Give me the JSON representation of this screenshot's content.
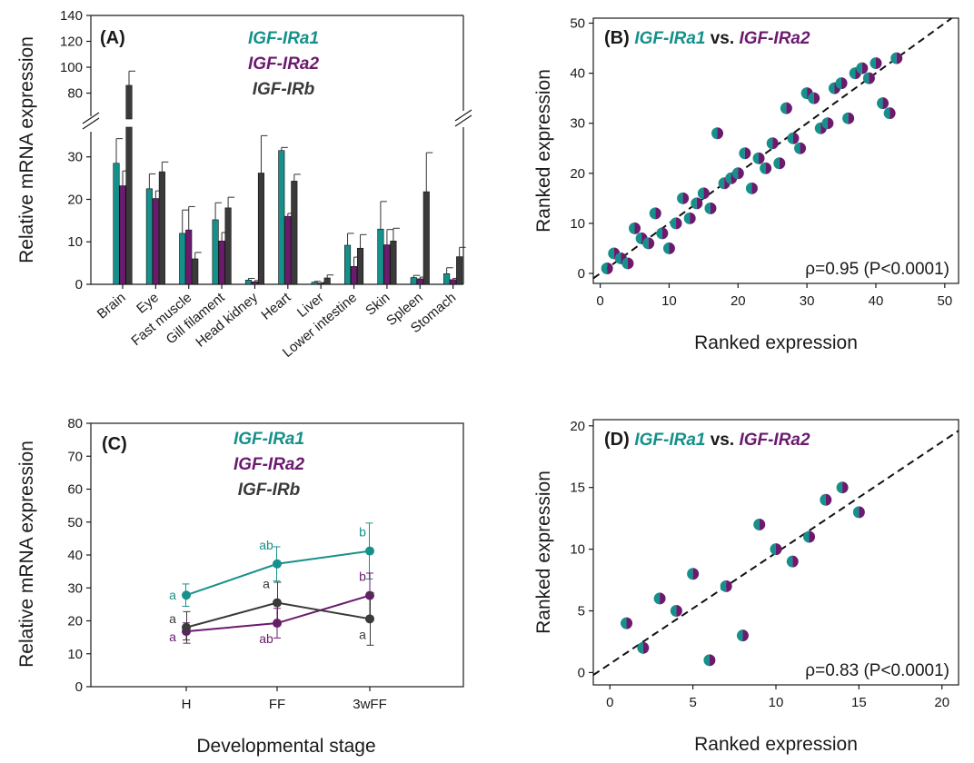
{
  "colors": {
    "a1": "#16908a",
    "a2": "#6b1a6e",
    "b": "#3a3a3a"
  },
  "chart_data": [
    {
      "panel": "A",
      "type": "bar",
      "panel_label": "(A)",
      "ylabel": "Relative mRNA expression",
      "ylim_lower": [
        0,
        37
      ],
      "ylim_upper": [
        60,
        140
      ],
      "y_ticks_lower": [
        0,
        10,
        20,
        30
      ],
      "y_ticks_upper": [
        80,
        100,
        120,
        140
      ],
      "axis_break": true,
      "categories": [
        "Brain",
        "Eye",
        "Fast muscle",
        "Gill filament",
        "Head kidney",
        "Heart",
        "Liver",
        "Lower intestine",
        "Skin",
        "Spleen",
        "Stomach"
      ],
      "legend": [
        "IGF-IRa1",
        "IGF-IRa2",
        "IGF-IRb"
      ],
      "series": [
        {
          "name": "IGF-IRa1",
          "color": "#16908a",
          "values": [
            28.5,
            22.5,
            12,
            15.2,
            1,
            31.5,
            0.5,
            9.2,
            13,
            1.6,
            2.5
          ],
          "errors": [
            5.8,
            3.5,
            5.5,
            4,
            0.4,
            6.5,
            0.2,
            2.8,
            6.5,
            0.5,
            1.4
          ]
        },
        {
          "name": "IGF-IRa2",
          "color": "#6b1a6e",
          "values": [
            23.2,
            20.2,
            12.8,
            10.2,
            0.6,
            16,
            0.3,
            4.2,
            9.3,
            1.3,
            1.1
          ],
          "errors": [
            3.5,
            1.8,
            5.5,
            2,
            0.3,
            0.7,
            0.1,
            2.2,
            3.6,
            0.4,
            0.3
          ]
        },
        {
          "name": "IGF-IRb",
          "color": "#3a3a3a",
          "values": [
            86,
            26.5,
            6,
            18,
            26.2,
            24.3,
            1.5,
            8.5,
            10.2,
            21.8,
            6.5
          ],
          "errors": [
            11,
            2.3,
            1.5,
            2.5,
            8.8,
            1.6,
            0.7,
            3.2,
            3,
            9.2,
            2.2
          ]
        }
      ]
    },
    {
      "panel": "B",
      "type": "scatter",
      "panel_label": "(B)",
      "title_series1": "IGF-IRa1",
      "title_vs": "vs.",
      "title_series2": "IGF-IRa2",
      "xlabel": "Ranked expression",
      "ylabel": "Ranked expression",
      "xlim": [
        -1,
        52
      ],
      "ylim": [
        -2,
        51
      ],
      "x_ticks": [
        0,
        10,
        20,
        30,
        40,
        50
      ],
      "y_ticks": [
        0,
        10,
        20,
        30,
        40,
        50
      ],
      "annotation": "ρ=0.95 (P<0.0001)",
      "trendline": {
        "slope": 1.0,
        "intercept": 0
      },
      "points": [
        [
          1,
          1
        ],
        [
          2,
          4
        ],
        [
          3,
          3
        ],
        [
          4,
          2
        ],
        [
          5,
          9
        ],
        [
          6,
          7
        ],
        [
          7,
          6
        ],
        [
          8,
          12
        ],
        [
          9,
          8
        ],
        [
          10,
          5
        ],
        [
          11,
          10
        ],
        [
          12,
          15
        ],
        [
          13,
          11
        ],
        [
          14,
          14
        ],
        [
          15,
          16
        ],
        [
          16,
          13
        ],
        [
          17,
          28
        ],
        [
          18,
          18
        ],
        [
          19,
          19
        ],
        [
          20,
          20
        ],
        [
          21,
          24
        ],
        [
          22,
          17
        ],
        [
          23,
          23
        ],
        [
          24,
          21
        ],
        [
          25,
          26
        ],
        [
          26,
          22
        ],
        [
          27,
          33
        ],
        [
          28,
          27
        ],
        [
          29,
          25
        ],
        [
          30,
          36
        ],
        [
          31,
          35
        ],
        [
          32,
          29
        ],
        [
          33,
          30
        ],
        [
          34,
          37
        ],
        [
          35,
          38
        ],
        [
          36,
          31
        ],
        [
          37,
          40
        ],
        [
          38,
          41
        ],
        [
          39,
          39
        ],
        [
          40,
          42
        ],
        [
          41,
          34
        ],
        [
          42,
          32
        ],
        [
          43,
          43
        ]
      ]
    },
    {
      "panel": "C",
      "type": "line",
      "panel_label": "(C)",
      "xlabel": "Developmental stage",
      "ylabel": "Relative mRNA expression",
      "categories": [
        "H",
        "FF",
        "3wFF"
      ],
      "ylim": [
        0,
        80
      ],
      "y_ticks": [
        0,
        10,
        20,
        30,
        40,
        50,
        60,
        70,
        80
      ],
      "legend": [
        "IGF-IRa1",
        "IGF-IRa2",
        "IGF-IRb"
      ],
      "series": [
        {
          "name": "IGF-IRa1",
          "color": "#16908a",
          "values": [
            27.8,
            37.3,
            41.2
          ],
          "errors": [
            3.4,
            5.2,
            8.5
          ],
          "letters": [
            "a",
            "ab",
            "b"
          ]
        },
        {
          "name": "IGF-IRa2",
          "color": "#6b1a6e",
          "values": [
            16.8,
            19.3,
            27.7
          ],
          "errors": [
            2.6,
            4.5,
            6.8
          ],
          "letters": [
            "a",
            "ab",
            "b"
          ]
        },
        {
          "name": "IGF-IRb",
          "color": "#3a3a3a",
          "values": [
            18.0,
            25.5,
            20.6
          ],
          "errors": [
            4.8,
            6.2,
            8.0
          ],
          "letters": [
            "a",
            "a",
            "a"
          ]
        }
      ]
    },
    {
      "panel": "D",
      "type": "scatter",
      "panel_label": "(D)",
      "title_series1": "IGF-IRa1",
      "title_vs": "vs.",
      "title_series2": "IGF-IRa2",
      "xlabel": "Ranked expression",
      "ylabel": "Ranked expression",
      "xlim": [
        -1,
        21
      ],
      "ylim": [
        -1,
        20.5
      ],
      "x_ticks": [
        0,
        5,
        10,
        15,
        20
      ],
      "y_ticks": [
        0,
        5,
        10,
        15,
        20
      ],
      "annotation": "ρ=0.83 (P<0.0001)",
      "trendline": {
        "slope": 0.9,
        "intercept": 0.7
      },
      "points": [
        [
          1,
          4
        ],
        [
          2,
          2
        ],
        [
          3,
          6
        ],
        [
          4,
          5
        ],
        [
          5,
          8
        ],
        [
          6,
          1
        ],
        [
          7,
          7
        ],
        [
          8,
          3
        ],
        [
          9,
          12
        ],
        [
          10,
          10
        ],
        [
          11,
          9
        ],
        [
          12,
          11
        ],
        [
          13,
          14
        ],
        [
          14,
          15
        ],
        [
          15,
          13
        ]
      ]
    }
  ]
}
